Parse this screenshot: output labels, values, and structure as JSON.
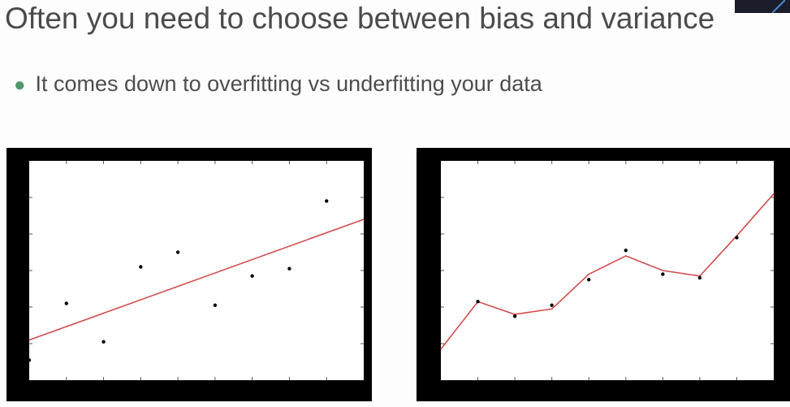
{
  "slide": {
    "title": "Often you need to choose between bias and variance",
    "bullet": "It comes down to overfitting vs underfitting your data"
  },
  "colors": {
    "frame": "#000000",
    "plot_bg": "#ffffff",
    "fit_line": "#d24c4c",
    "points": "#000000",
    "bullet": "#4f9a6e",
    "text": "#4b4b4b"
  },
  "chart_data": [
    {
      "type": "scatter",
      "title": "",
      "xlabel": "",
      "ylabel": "",
      "xlim": [
        0,
        9
      ],
      "ylim": [
        0,
        6
      ],
      "grid": false,
      "points": [
        {
          "x": 0.0,
          "y": 0.55
        },
        {
          "x": 1.0,
          "y": 2.1
        },
        {
          "x": 2.0,
          "y": 1.05
        },
        {
          "x": 3.0,
          "y": 3.1
        },
        {
          "x": 4.0,
          "y": 3.5
        },
        {
          "x": 5.0,
          "y": 2.05
        },
        {
          "x": 6.0,
          "y": 2.85
        },
        {
          "x": 7.0,
          "y": 3.05
        },
        {
          "x": 8.0,
          "y": 4.9
        }
      ],
      "fit_line": {
        "x": [
          0,
          9
        ],
        "y": [
          1.1,
          4.4
        ]
      }
    },
    {
      "type": "line",
      "title": "",
      "xlabel": "",
      "ylabel": "",
      "xlim": [
        0,
        9
      ],
      "ylim": [
        0,
        6
      ],
      "grid": false,
      "points": [
        {
          "x": 1.0,
          "y": 2.15
        },
        {
          "x": 2.0,
          "y": 1.75
        },
        {
          "x": 3.0,
          "y": 2.05
        },
        {
          "x": 4.0,
          "y": 2.75
        },
        {
          "x": 5.0,
          "y": 3.55
        },
        {
          "x": 6.0,
          "y": 2.9
        },
        {
          "x": 7.0,
          "y": 2.8
        },
        {
          "x": 8.0,
          "y": 3.9
        }
      ],
      "fit_line": {
        "x": [
          0,
          1,
          2,
          3,
          4,
          5,
          6,
          7,
          8,
          9
        ],
        "y": [
          0.85,
          2.15,
          1.8,
          1.95,
          2.9,
          3.4,
          3.0,
          2.85,
          3.95,
          5.1
        ]
      }
    }
  ]
}
